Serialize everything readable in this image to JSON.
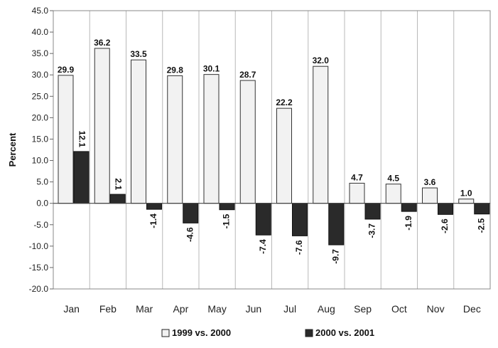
{
  "chart_data": {
    "type": "bar",
    "title": "",
    "xlabel": "",
    "ylabel": "Percent",
    "ylim": [
      -20,
      45
    ],
    "ytick_step": 5,
    "ytick_labels": [
      "-20.0",
      "-15.0",
      "-10.0",
      "-5.0",
      "0.0",
      "5.0",
      "10.0",
      "15.0",
      "20.0",
      "25.0",
      "30.0",
      "35.0",
      "40.0",
      "45.0"
    ],
    "grid": "vertical separators between categories",
    "legend_position": "bottom",
    "categories": [
      "Jan",
      "Feb",
      "Mar",
      "Apr",
      "May",
      "Jun",
      "Jul",
      "Aug",
      "Sep",
      "Oct",
      "Nov",
      "Dec"
    ],
    "series": [
      {
        "name": "1999 vs. 2000",
        "color": "#f2f2f2",
        "values": [
          29.9,
          36.2,
          33.5,
          29.8,
          30.1,
          28.7,
          22.2,
          32.0,
          4.7,
          4.5,
          3.6,
          1.0
        ],
        "labels": [
          "29.9",
          "36.2",
          "33.5",
          "29.8",
          "30.1",
          "28.7",
          "22.2",
          "32.0",
          "4.7",
          "4.5",
          "3.6",
          "1.0"
        ]
      },
      {
        "name": "2000 vs. 2001",
        "color": "#2a2a2a",
        "values": [
          12.1,
          2.1,
          -1.4,
          -4.6,
          -1.5,
          -7.4,
          -7.6,
          -9.7,
          -3.7,
          -1.9,
          -2.6,
          -2.5
        ],
        "labels": [
          "12.1",
          "2.1",
          "-1.4",
          "-4.6",
          "-1.5",
          "-7.4",
          "-7.6",
          "-9.7",
          "-3.7",
          "-1.9",
          "-2.6",
          "-2.5"
        ]
      }
    ]
  }
}
